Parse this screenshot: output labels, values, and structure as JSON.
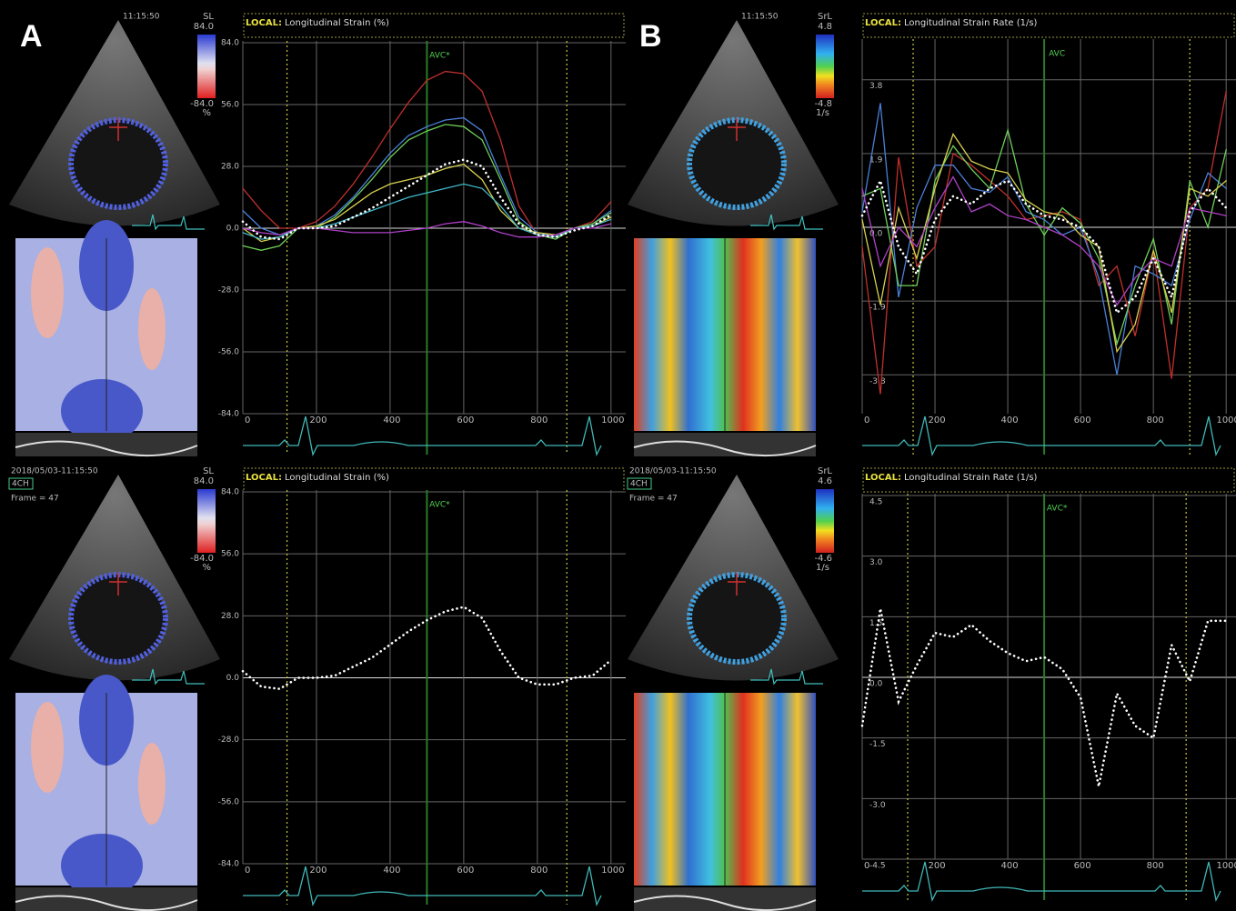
{
  "figure_labels": [
    "A",
    "B"
  ],
  "echo_panels": [
    {
      "timestamp": "11:15:50",
      "colorbar": {
        "label": "SL",
        "max": "84.0",
        "min": "-84.0",
        "unit": "%"
      },
      "palette": "strain"
    },
    {
      "timestamp": "11:15:50",
      "colorbar": {
        "label": "SrL",
        "max": "4.8",
        "min": "-4.8",
        "unit": "1/s"
      },
      "palette": "rate"
    },
    {
      "timestamp": "2018/05/03-11:15:50",
      "view": "4CH",
      "frame": "Frame = 47",
      "colorbar": {
        "label": "SL",
        "max": "84.0",
        "min": "-84.0",
        "unit": "%"
      },
      "palette": "strain"
    },
    {
      "timestamp": "2018/05/03-11:15:50",
      "view": "4CH",
      "frame": "Frame = 47",
      "colorbar": {
        "label": "SrL",
        "max": "4.6",
        "min": "-4.6",
        "unit": "1/s"
      },
      "palette": "rate"
    }
  ],
  "chart_data": [
    {
      "type": "line",
      "mode": "LOCAL:",
      "title": "Longitudinal Strain (%)",
      "annotation": "AVC*",
      "annotation_x": 500,
      "markers_x": [
        120,
        880
      ],
      "x": [
        0,
        50,
        100,
        150,
        200,
        250,
        300,
        350,
        400,
        450,
        500,
        550,
        600,
        650,
        700,
        750,
        800,
        850,
        900,
        950,
        1000
      ],
      "xlim": [
        0,
        1040
      ],
      "xticks": [
        0,
        200,
        400,
        600,
        800,
        1000
      ],
      "ylim": [
        -84,
        84
      ],
      "yticks": [
        {
          "value": 84,
          "label": "84.0"
        },
        {
          "value": 56,
          "label": "56.0"
        },
        {
          "value": 28,
          "label": "28.0"
        },
        {
          "value": 0,
          "label": "0.0"
        },
        {
          "value": -28,
          "label": "-28.0"
        },
        {
          "value": -56,
          "label": "-56.0"
        },
        {
          "value": -84,
          "label": "-84.0"
        }
      ],
      "grid": true,
      "series": [
        {
          "color": "#c0302c",
          "values": [
            18,
            8,
            0,
            0,
            3,
            10,
            20,
            32,
            45,
            57,
            67,
            71,
            70,
            62,
            40,
            10,
            -3,
            -4,
            0,
            3,
            12
          ]
        },
        {
          "color": "#4a7fd8",
          "values": [
            8,
            0,
            -3,
            0,
            1,
            6,
            14,
            24,
            34,
            42,
            46,
            49,
            50,
            44,
            24,
            5,
            -2,
            -4,
            0,
            2,
            8
          ]
        },
        {
          "color": "#6fd05a",
          "values": [
            -8,
            -10,
            -8,
            0,
            0,
            5,
            13,
            22,
            32,
            40,
            44,
            47,
            46,
            40,
            22,
            3,
            -3,
            -5,
            0,
            2,
            7
          ]
        },
        {
          "color": "#d8d050",
          "values": [
            0,
            -6,
            -4,
            0,
            1,
            4,
            10,
            16,
            20,
            22,
            24,
            27,
            29,
            22,
            8,
            0,
            -2,
            -3,
            0,
            1,
            5
          ]
        },
        {
          "color": "#40b8c8",
          "values": [
            -2,
            -5,
            -4,
            0,
            0,
            2,
            5,
            8,
            11,
            14,
            16,
            18,
            20,
            18,
            10,
            0,
            -3,
            -4,
            0,
            1,
            4
          ]
        },
        {
          "color": "#b040c8",
          "values": [
            0,
            -2,
            -3,
            0,
            0,
            -1,
            -2,
            -2,
            -2,
            -1,
            0,
            2,
            3,
            1,
            -2,
            -4,
            -4,
            -3,
            0,
            0,
            2
          ]
        },
        {
          "color": "#ffffff",
          "dotted": true,
          "values": [
            3,
            -4,
            -5,
            0,
            0,
            1,
            5,
            9,
            14,
            19,
            24,
            29,
            31,
            28,
            14,
            2,
            -3,
            -4,
            -1,
            1,
            6
          ]
        }
      ]
    },
    {
      "type": "line",
      "mode": "LOCAL:",
      "title": "Longitudinal Strain Rate (1/s)",
      "annotation": "AVC",
      "annotation_x": 500,
      "markers_x": [
        140,
        900
      ],
      "x": [
        0,
        50,
        100,
        150,
        200,
        250,
        300,
        350,
        400,
        450,
        500,
        550,
        600,
        650,
        700,
        750,
        800,
        850,
        900,
        950,
        1000
      ],
      "xlim": [
        0,
        1027
      ],
      "xticks": [
        0,
        200,
        400,
        600,
        800,
        1000
      ],
      "ylim": [
        -4.8,
        4.8
      ],
      "yticks": [
        {
          "value": 3.8,
          "label": "3.8"
        },
        {
          "value": 1.9,
          "label": "1.9"
        },
        {
          "value": 0,
          "label": "0.0"
        },
        {
          "value": -1.9,
          "label": "-1.9"
        },
        {
          "value": -3.8,
          "label": "-3.8"
        }
      ],
      "grid": true,
      "series": [
        {
          "color": "#c0302c",
          "values": [
            -0.5,
            -4.3,
            1.8,
            -1.0,
            -0.5,
            1.9,
            1.6,
            1.2,
            0.8,
            0.2,
            0.3,
            0.4,
            0.2,
            -1.5,
            -1.0,
            -2.8,
            -0.6,
            -3.9,
            0.5,
            1.0,
            3.5
          ]
        },
        {
          "color": "#4a7fd8",
          "values": [
            0.4,
            3.2,
            -1.8,
            0.5,
            1.6,
            1.6,
            1.0,
            0.9,
            1.3,
            0.4,
            0.2,
            -0.2,
            0.0,
            -1.3,
            -3.8,
            -1.0,
            -1.2,
            -1.5,
            0.2,
            1.4,
            1.0
          ]
        },
        {
          "color": "#6fd05a",
          "values": [
            0.8,
            1.0,
            -1.5,
            -1.5,
            1.2,
            2.1,
            1.5,
            1.0,
            2.5,
            0.6,
            -0.2,
            0.5,
            0.1,
            -0.8,
            -3.0,
            -1.5,
            -0.3,
            -2.5,
            1.2,
            0.0,
            2.0
          ]
        },
        {
          "color": "#d8d050",
          "values": [
            0.2,
            -2.0,
            0.5,
            -0.8,
            1.0,
            2.4,
            1.7,
            1.5,
            1.4,
            0.7,
            0.4,
            0.3,
            -0.2,
            -0.5,
            -3.2,
            -2.5,
            -0.6,
            -2.2,
            1.0,
            0.8,
            1.2
          ]
        },
        {
          "color": "#b040c8",
          "values": [
            1.0,
            -1.0,
            0.0,
            -0.5,
            0.5,
            1.3,
            0.4,
            0.6,
            0.3,
            0.2,
            0.0,
            -0.2,
            -0.5,
            -1.0,
            -2.0,
            -1.3,
            -0.8,
            -1.0,
            0.5,
            0.4,
            0.3
          ]
        },
        {
          "color": "#ffffff",
          "dotted": true,
          "values": [
            0.3,
            1.2,
            -0.5,
            -1.2,
            0.2,
            0.8,
            0.6,
            1.0,
            1.2,
            0.6,
            0.3,
            0.2,
            0.0,
            -0.5,
            -2.2,
            -1.8,
            -0.8,
            -1.8,
            0.4,
            1.0,
            0.5
          ]
        }
      ]
    },
    {
      "type": "line",
      "mode": "LOCAL:",
      "title": "Longitudinal Strain (%)",
      "annotation": "AVC*",
      "annotation_x": 500,
      "markers_x": [
        120,
        880
      ],
      "x": [
        0,
        50,
        100,
        150,
        200,
        250,
        300,
        350,
        400,
        450,
        500,
        550,
        600,
        650,
        700,
        750,
        800,
        850,
        900,
        950,
        1000
      ],
      "xlim": [
        0,
        1040
      ],
      "xticks": [
        0,
        200,
        400,
        600,
        800,
        1000
      ],
      "ylim": [
        -84,
        84
      ],
      "yticks": [
        {
          "value": 84,
          "label": "84.0"
        },
        {
          "value": 56,
          "label": "56.0"
        },
        {
          "value": 28,
          "label": "28.0"
        },
        {
          "value": 0,
          "label": "0.0"
        },
        {
          "value": -28,
          "label": "-28.0"
        },
        {
          "value": -56,
          "label": "-56.0"
        },
        {
          "value": -84,
          "label": "-84.0"
        }
      ],
      "grid": true,
      "series": [
        {
          "color": "#ffffff",
          "dotted": true,
          "values": [
            3,
            -4,
            -5,
            0,
            0,
            1,
            5,
            9,
            15,
            21,
            26,
            30,
            32,
            27,
            12,
            0,
            -3,
            -3,
            0,
            1,
            8
          ]
        }
      ]
    },
    {
      "type": "line",
      "mode": "LOCAL:",
      "title": "Longitudinal Strain Rate (1/s)",
      "annotation": "AVC*",
      "annotation_x": 500,
      "markers_x": [
        125,
        890
      ],
      "x": [
        0,
        50,
        100,
        150,
        200,
        250,
        300,
        350,
        400,
        450,
        500,
        550,
        600,
        650,
        700,
        750,
        800,
        850,
        900,
        950,
        1000
      ],
      "xlim": [
        0,
        1027
      ],
      "xticks": [
        0,
        200,
        400,
        600,
        800,
        1000
      ],
      "ylim": [
        -4.5,
        4.5
      ],
      "yticks": [
        {
          "value": 4.5,
          "label": "4.5"
        },
        {
          "value": 3.0,
          "label": "3.0"
        },
        {
          "value": 1.5,
          "label": "1.5"
        },
        {
          "value": 0,
          "label": "0.0"
        },
        {
          "value": -1.5,
          "label": "-1.5"
        },
        {
          "value": -3.0,
          "label": "-3.0"
        },
        {
          "value": -4.5,
          "label": "-4.5"
        }
      ],
      "grid": true,
      "series": [
        {
          "color": "#ffffff",
          "dotted": true,
          "values": [
            -1.2,
            1.7,
            -0.6,
            0.3,
            1.1,
            1.0,
            1.3,
            0.9,
            0.6,
            0.4,
            0.5,
            0.2,
            -0.5,
            -2.7,
            -0.4,
            -1.2,
            -1.5,
            0.8,
            -0.1,
            1.4,
            1.4
          ]
        }
      ]
    }
  ]
}
